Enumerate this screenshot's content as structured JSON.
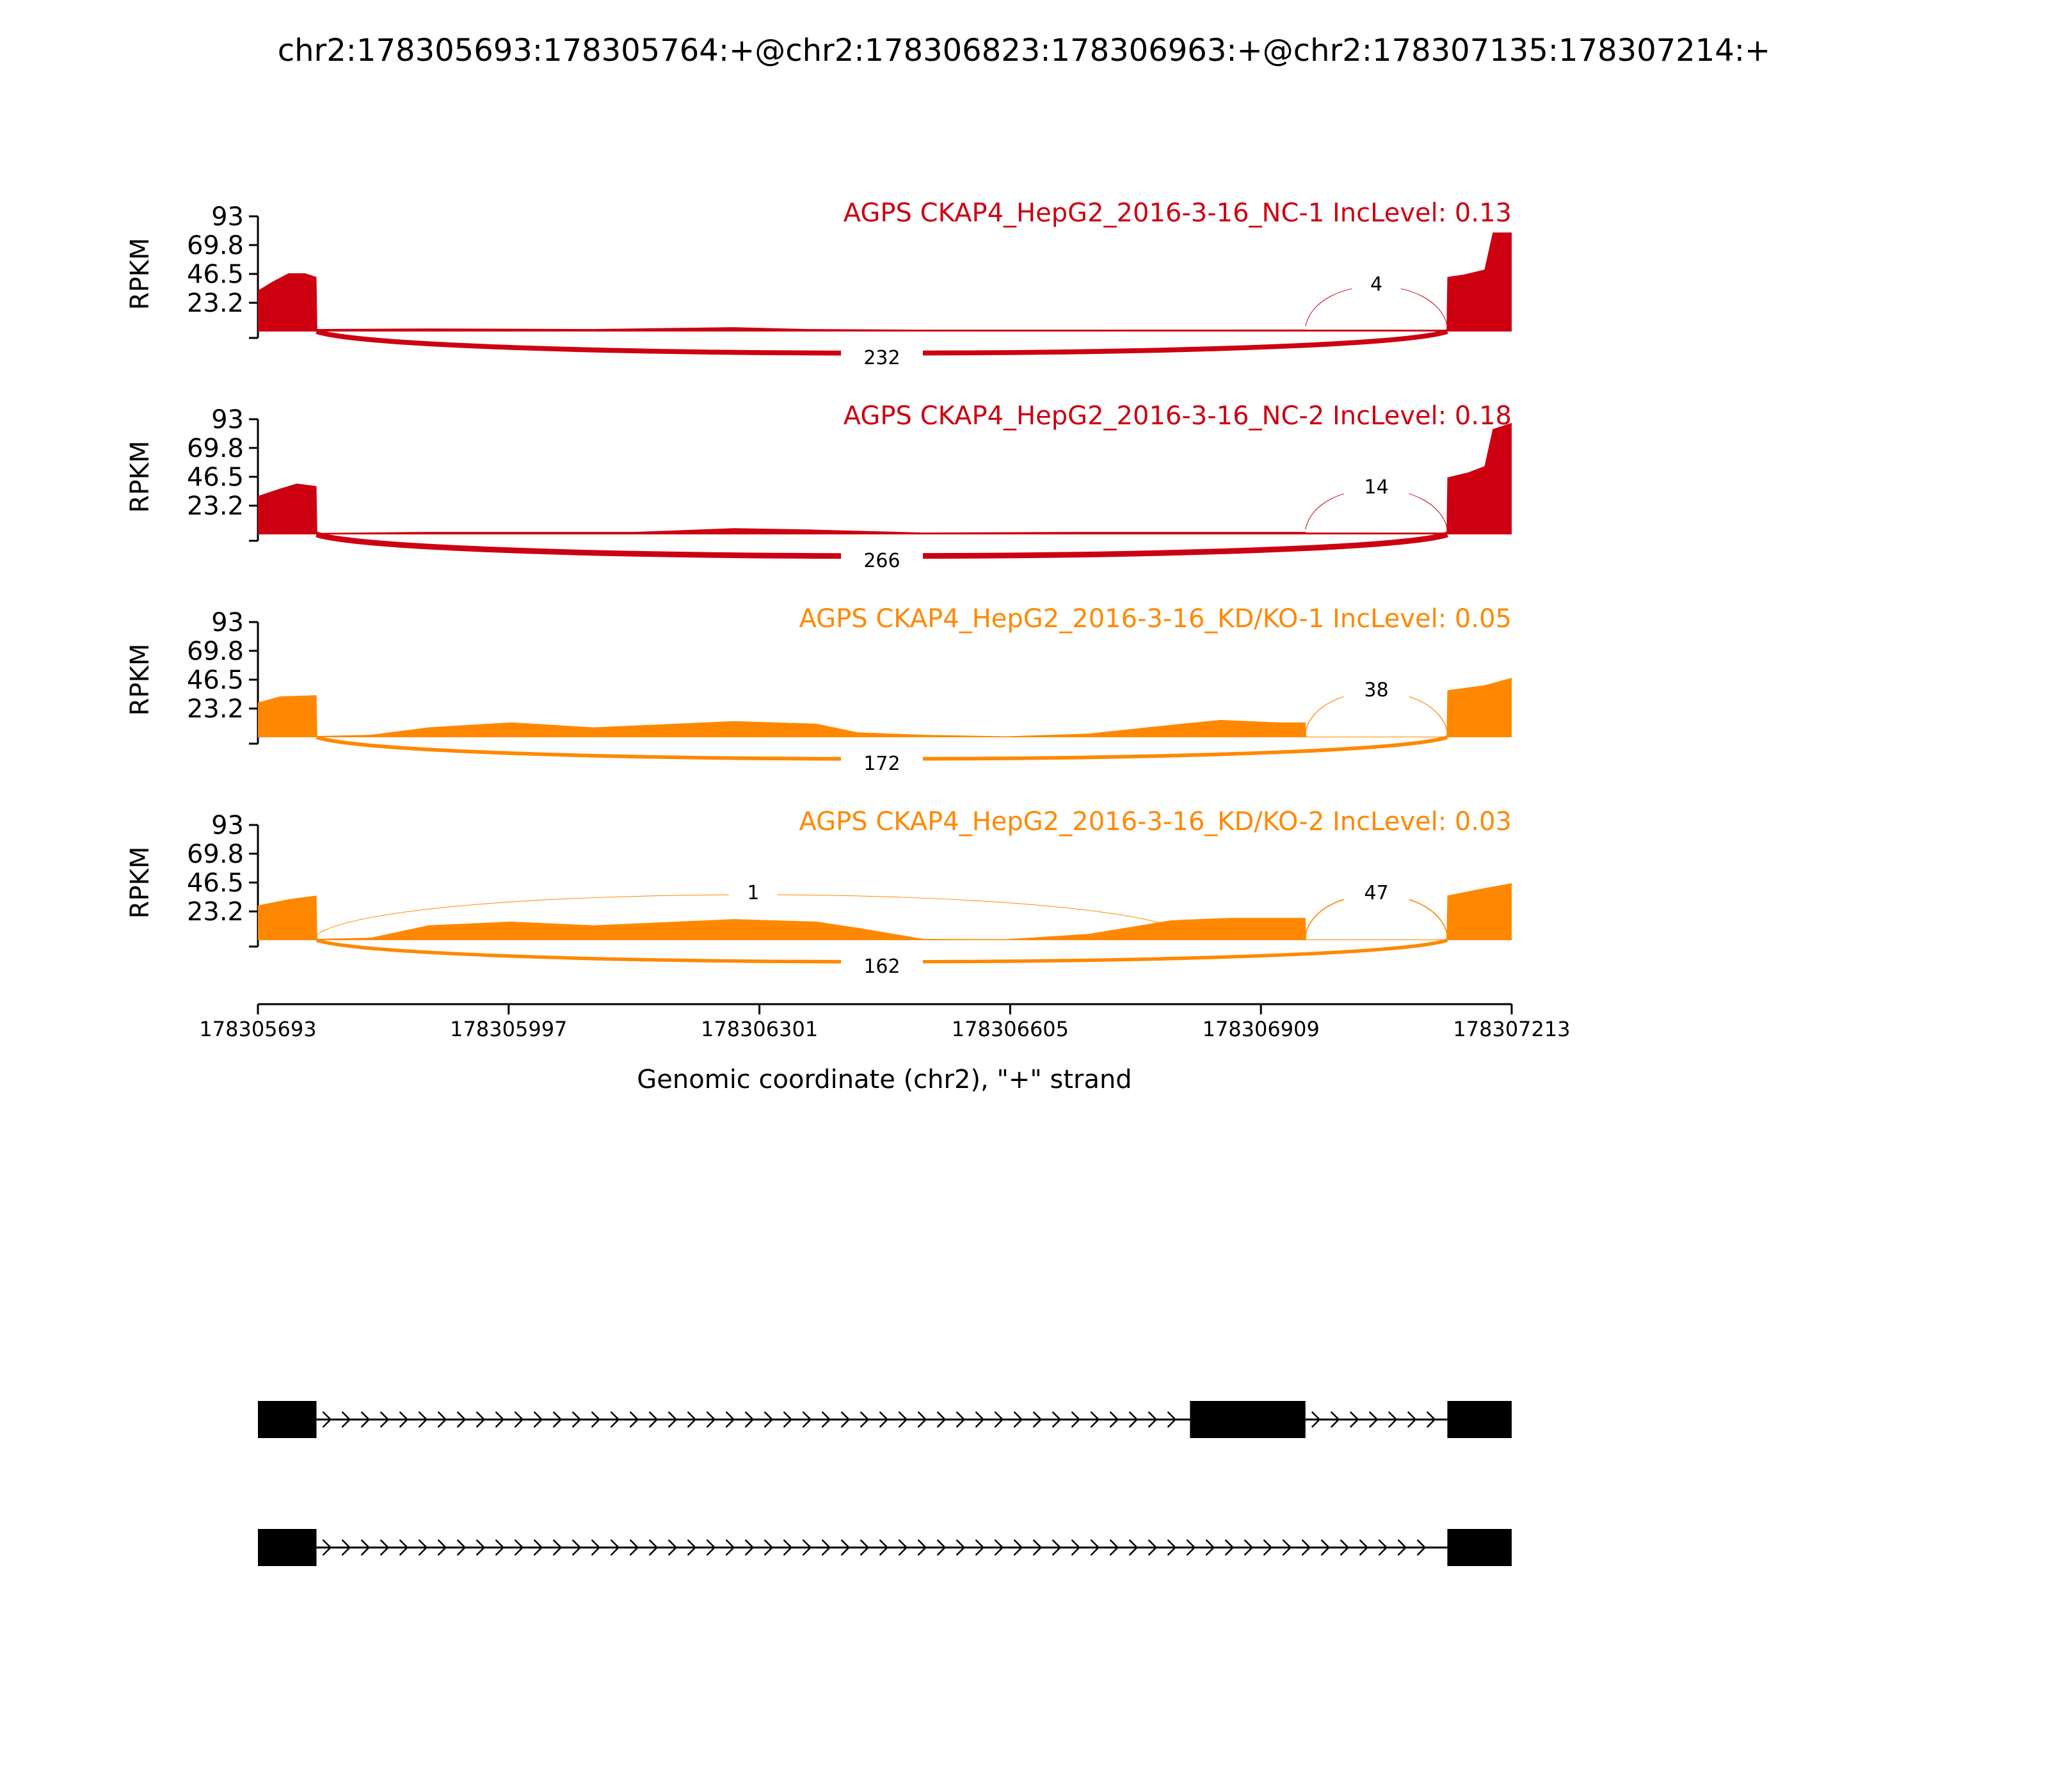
{
  "chart_data": {
    "type": "area",
    "title": "chr2:178305693:178305764:+@chr2:178306823:178306963:+@chr2:178307135:178307214:+",
    "xlabel": "Genomic coordinate (chr2), \"+\" strand",
    "ylabel": "RPKM",
    "xlim": [
      178305693,
      178307213
    ],
    "ylim": [
      0,
      93
    ],
    "x_ticks": [
      178305693,
      178305997,
      178306301,
      178306605,
      178306909,
      178307213
    ],
    "y_ticks": [
      23.2,
      46.5,
      69.8,
      93
    ],
    "y_tick_labels": [
      "23.2",
      "46.5",
      "69.8",
      "93"
    ],
    "tracks": [
      {
        "name": "AGPS CKAP4_HepG2_2016-3-16_NC-1 IncLevel: 0.13",
        "color": "#cc0011",
        "coverage": [
          [
            178305693,
            33
          ],
          [
            178305710,
            40
          ],
          [
            178305730,
            47
          ],
          [
            178305750,
            47
          ],
          [
            178305764,
            44
          ],
          [
            178305765,
            2
          ],
          [
            178305900,
            2.5
          ],
          [
            178306100,
            2
          ],
          [
            178306270,
            3.5
          ],
          [
            178306360,
            2
          ],
          [
            178306500,
            1.5
          ],
          [
            178306700,
            1.5
          ],
          [
            178306960,
            1.6
          ],
          [
            178306963,
            1.6
          ],
          [
            178306964,
            1.5
          ],
          [
            178307134,
            1.5
          ],
          [
            178307135,
            44
          ],
          [
            178307155,
            46
          ],
          [
            178307180,
            50
          ],
          [
            178307190,
            80
          ],
          [
            178307213,
            80
          ]
        ],
        "junctions": [
          {
            "from": 178305764,
            "to": 178307135,
            "count": 232,
            "side": "below"
          },
          {
            "from": 178306963,
            "to": 178307135,
            "count": 4,
            "side": "above"
          }
        ]
      },
      {
        "name": "AGPS CKAP4_HepG2_2016-3-16_NC-2 IncLevel: 0.18",
        "color": "#cc0011",
        "coverage": [
          [
            178305693,
            31
          ],
          [
            178305720,
            37
          ],
          [
            178305740,
            41
          ],
          [
            178305764,
            39
          ],
          [
            178305765,
            1.2
          ],
          [
            178305900,
            2
          ],
          [
            178306150,
            2
          ],
          [
            178306270,
            5
          ],
          [
            178306360,
            4
          ],
          [
            178306500,
            1.5
          ],
          [
            178306700,
            2
          ],
          [
            178306960,
            2
          ],
          [
            178306963,
            2
          ],
          [
            178306964,
            1.5
          ],
          [
            178307134,
            1.5
          ],
          [
            178307135,
            46
          ],
          [
            178307160,
            50
          ],
          [
            178307180,
            55
          ],
          [
            178307190,
            85
          ],
          [
            178307213,
            90
          ]
        ],
        "junctions": [
          {
            "from": 178305764,
            "to": 178307135,
            "count": 266,
            "side": "below"
          },
          {
            "from": 178306963,
            "to": 178307135,
            "count": 14,
            "side": "above"
          }
        ]
      },
      {
        "name": "AGPS CKAP4_HepG2_2016-3-16_KD/KO-1 IncLevel: 0.05",
        "color": "#ff8800",
        "coverage": [
          [
            178305693,
            28
          ],
          [
            178305720,
            33
          ],
          [
            178305764,
            34
          ],
          [
            178305765,
            1
          ],
          [
            178305830,
            2
          ],
          [
            178305900,
            8
          ],
          [
            178306000,
            12
          ],
          [
            178306100,
            8
          ],
          [
            178306270,
            13
          ],
          [
            178306370,
            11
          ],
          [
            178306420,
            4
          ],
          [
            178306500,
            2
          ],
          [
            178306600,
            0.8
          ],
          [
            178306700,
            3
          ],
          [
            178306800,
            10
          ],
          [
            178306860,
            14
          ],
          [
            178306930,
            12
          ],
          [
            178306963,
            12
          ],
          [
            178306964,
            0.5
          ],
          [
            178307134,
            0.5
          ],
          [
            178307135,
            38
          ],
          [
            178307180,
            42
          ],
          [
            178307213,
            48
          ]
        ],
        "junctions": [
          {
            "from": 178305764,
            "to": 178307135,
            "count": 172,
            "side": "below"
          },
          {
            "from": 178306963,
            "to": 178307135,
            "count": 38,
            "side": "above"
          }
        ]
      },
      {
        "name": "AGPS CKAP4_HepG2_2016-3-16_KD/KO-2 IncLevel: 0.03",
        "color": "#ff8800",
        "coverage": [
          [
            178305693,
            28
          ],
          [
            178305730,
            33
          ],
          [
            178305764,
            36
          ],
          [
            178305765,
            1
          ],
          [
            178305830,
            2
          ],
          [
            178305900,
            12
          ],
          [
            178306000,
            15
          ],
          [
            178306100,
            12
          ],
          [
            178306270,
            17
          ],
          [
            178306370,
            15
          ],
          [
            178306420,
            10
          ],
          [
            178306500,
            1
          ],
          [
            178306600,
            0.8
          ],
          [
            178306700,
            5
          ],
          [
            178306800,
            16
          ],
          [
            178306870,
            18
          ],
          [
            178306963,
            18
          ],
          [
            178306964,
            0.5
          ],
          [
            178307134,
            0.5
          ],
          [
            178307135,
            36
          ],
          [
            178307180,
            42
          ],
          [
            178307213,
            46
          ]
        ],
        "junctions": [
          {
            "from": 178305764,
            "to": 178307135,
            "count": 162,
            "side": "below"
          },
          {
            "from": 178306963,
            "to": 178307135,
            "count": 47,
            "side": "above"
          },
          {
            "from": 178305764,
            "to": 178306823,
            "count": 1,
            "side": "above"
          }
        ]
      }
    ],
    "isoforms": [
      {
        "exons": [
          [
            178305693,
            178305764
          ],
          [
            178306823,
            178306963
          ],
          [
            178307135,
            178307214
          ]
        ]
      },
      {
        "exons": [
          [
            178305693,
            178305764
          ],
          [
            178307135,
            178307214
          ]
        ]
      }
    ]
  }
}
